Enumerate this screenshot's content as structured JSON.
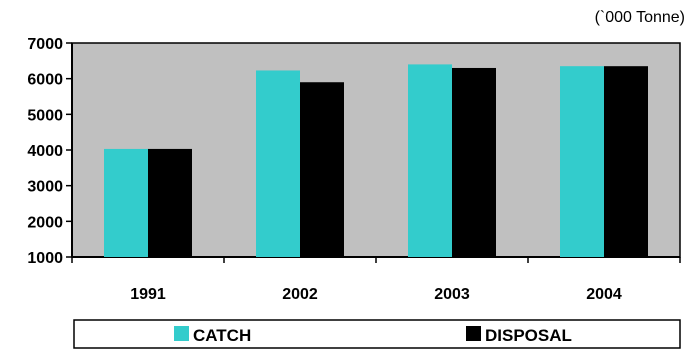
{
  "chart_data": {
    "type": "bar",
    "unit_label": "(`000 Tonne)",
    "categories": [
      "1991",
      "2002",
      "2003",
      "2004"
    ],
    "series": [
      {
        "name": "CATCH",
        "color": "#33CCCC",
        "values": [
          4030,
          6230,
          6400,
          6350
        ]
      },
      {
        "name": "DISPOSAL",
        "color": "#000000",
        "values": [
          4030,
          5900,
          6300,
          6350
        ]
      }
    ],
    "ylim": [
      1000,
      7000
    ],
    "yticks": [
      1000,
      2000,
      3000,
      4000,
      5000,
      6000,
      7000
    ],
    "grid": false,
    "legend_position": "bottom",
    "plot_background": "#C0C0C0"
  }
}
